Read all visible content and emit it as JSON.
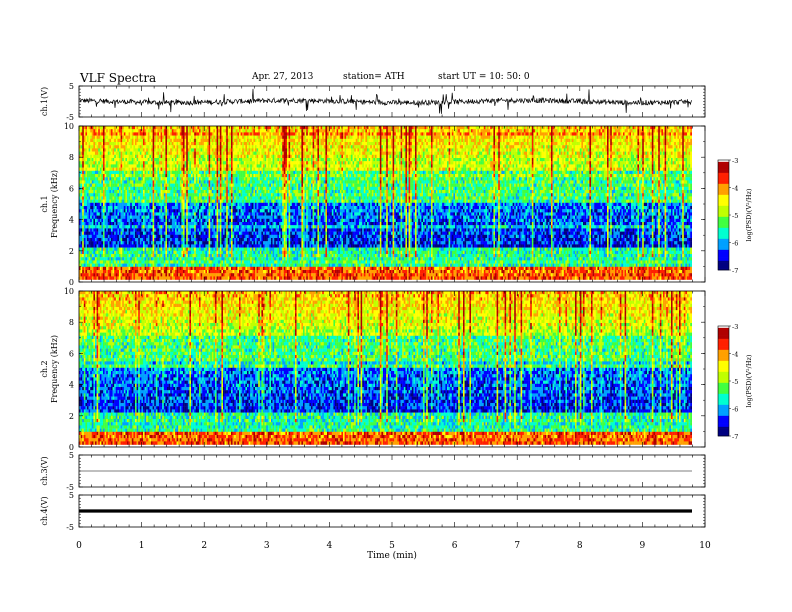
{
  "header": {
    "title": "VLF  Spectra",
    "date": "Apr. 27, 2013",
    "station": "station= ATH",
    "start": "start  UT  =    10: 50: 0"
  },
  "x_axis": {
    "label": "Time  (min)",
    "range": [
      0,
      10
    ],
    "ticks": [
      "0",
      "1",
      "2",
      "3",
      "4",
      "5",
      "6",
      "7",
      "8",
      "9",
      "10"
    ]
  },
  "colorbar": {
    "label": "log(PSD)(V²/Hz)",
    "range": [
      -7,
      -3
    ],
    "ticks": [
      "-3",
      "-4",
      "-5",
      "-6",
      "-7"
    ],
    "colors": [
      "#000080",
      "#0000ff",
      "#00a0ff",
      "#00ffd0",
      "#40ff40",
      "#c0ff00",
      "#ffff00",
      "#ffa000",
      "#ff2000",
      "#b00000",
      "#ffffff"
    ]
  },
  "chart_data": [
    {
      "type": "line",
      "ylabel": "ch.1(V)",
      "ylim": [
        -5,
        5
      ],
      "yticks": [
        "5",
        "-5"
      ],
      "x_range_min": [
        0,
        9.82
      ],
      "description_level": "noisy trace near 0 V with spikes"
    },
    {
      "type": "heatmap",
      "channel": "ch.1",
      "ylabel": "Frequency  (kHz)",
      "ylim": [
        0,
        10
      ],
      "yticks": [
        "0",
        "2",
        "4",
        "6",
        "8",
        "10"
      ],
      "zlim": [
        -7,
        -3
      ],
      "x_range_min": [
        0,
        9.82
      ]
    },
    {
      "type": "heatmap",
      "channel": "ch.2",
      "ylabel": "Frequency  (kHz)",
      "ylim": [
        0,
        10
      ],
      "yticks": [
        "0",
        "2",
        "4",
        "6",
        "8",
        "10"
      ],
      "zlim": [
        -7,
        -3
      ],
      "x_range_min": [
        0,
        9.82
      ]
    },
    {
      "type": "line",
      "ylabel": "ch.3(V)",
      "ylim": [
        -5,
        5
      ],
      "yticks": [
        "5",
        "-5"
      ],
      "level": 0,
      "x_range_min": [
        0,
        9.82
      ]
    },
    {
      "type": "line",
      "ylabel": "ch.4(V)",
      "ylim": [
        -5,
        5
      ],
      "yticks": [
        "5",
        "-5"
      ],
      "level": 0,
      "x_range_min": [
        0,
        9.82
      ]
    }
  ]
}
